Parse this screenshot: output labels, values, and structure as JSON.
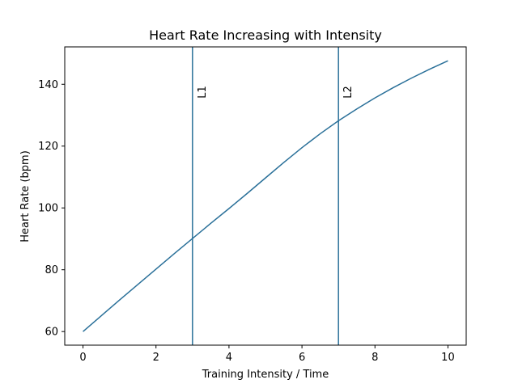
{
  "chart_data": {
    "type": "line",
    "title": "Heart Rate Increasing with Intensity",
    "xlabel": "Training Intensity / Time",
    "ylabel": "Heart Rate (bpm)",
    "xlim": [
      -0.5,
      10.5
    ],
    "ylim": [
      55.6,
      152.1
    ],
    "xticks": [
      0,
      2,
      4,
      6,
      8,
      10
    ],
    "yticks": [
      60,
      80,
      100,
      120,
      140
    ],
    "grid": false,
    "line_color": "#2a7099",
    "series": [
      {
        "name": "Heart Rate",
        "x": [
          0,
          0.5,
          1,
          1.5,
          2,
          2.5,
          3,
          3.5,
          4,
          4.5,
          5,
          5.5,
          6,
          6.5,
          7,
          7.5,
          8,
          8.5,
          9,
          9.5,
          10
        ],
        "y": [
          60,
          65.1,
          70.2,
          75.2,
          80.2,
          85.2,
          90.1,
          95.0,
          99.8,
          104.7,
          109.7,
          114.7,
          119.5,
          124.0,
          128.2,
          132.0,
          135.6,
          138.9,
          142.0,
          144.9,
          147.6
        ]
      }
    ],
    "vlines": [
      {
        "x": 3,
        "label": "L1"
      },
      {
        "x": 7,
        "label": "L2"
      }
    ]
  }
}
